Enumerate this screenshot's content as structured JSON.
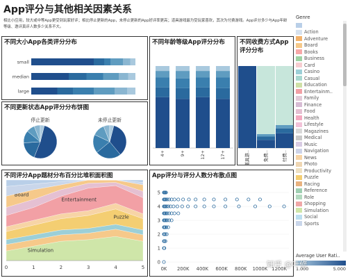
{
  "dashboard": {
    "title": "App评分与其他相关因素关系",
    "description": "相比小应用，较大或中等App更受到玩家好评；相比停止更新的App，未停止更新的App好评率更高；道具游戏最为受玩家喜欢，其次为付费游戏。App评分多少与App年龄等级、邀评真评人数多少关系不大。"
  },
  "colors": {
    "scale": [
      "#a9c9de",
      "#8ab6d1",
      "#5f9cc0",
      "#3a7fae",
      "#2a6a9e",
      "#1f4e8c"
    ],
    "mint": "#c7e6db",
    "mint_dark": "#aad8c8"
  },
  "legend": {
    "title": "Genre",
    "items": [
      {
        "label": "",
        "color": "#b9cfe8"
      },
      {
        "label": "Action",
        "color": "#d7e2ee"
      },
      {
        "label": "Adventure",
        "color": "#f2b26b"
      },
      {
        "label": "Board",
        "color": "#f6c98a"
      },
      {
        "label": "Books",
        "color": "#f7a8a8"
      },
      {
        "label": "Business",
        "color": "#9fd3a4"
      },
      {
        "label": "Card",
        "color": "#f6cdd0"
      },
      {
        "label": "Casino",
        "color": "#9ccfd7"
      },
      {
        "label": "Casual",
        "color": "#a8d8d0"
      },
      {
        "label": "Education",
        "color": "#cfe0a6"
      },
      {
        "label": "Entertainm..",
        "color": "#f2a0a5"
      },
      {
        "label": "Family",
        "color": "#e3cbd8"
      },
      {
        "label": "Finance",
        "color": "#d7bcd4"
      },
      {
        "label": "Food",
        "color": "#e5c0d2"
      },
      {
        "label": "Health",
        "color": "#f4a9c0"
      },
      {
        "label": "Lifestyle",
        "color": "#f2c2d8"
      },
      {
        "label": "Magazines",
        "color": "#d8d8d8"
      },
      {
        "label": "Medical",
        "color": "#c9c9c9"
      },
      {
        "label": "Music",
        "color": "#d8cbe3"
      },
      {
        "label": "Navigation",
        "color": "#cdd3e8"
      },
      {
        "label": "News",
        "color": "#f7d4a6"
      },
      {
        "label": "Photo",
        "color": "#efd6b2"
      },
      {
        "label": "Productivity",
        "color": "#eee0c2"
      },
      {
        "label": "Puzzle",
        "color": "#f4ce72"
      },
      {
        "label": "Racing",
        "color": "#e9b27f"
      },
      {
        "label": "Reference",
        "color": "#9fcfb2"
      },
      {
        "label": "Role",
        "color": "#b4dac0"
      },
      {
        "label": "Shopping",
        "color": "#f0a7a7"
      },
      {
        "label": "Simulation",
        "color": "#cfe6a9"
      },
      {
        "label": "Social",
        "color": "#bcdff0"
      },
      {
        "label": "Sports",
        "color": "#c9d6ea"
      }
    ]
  },
  "average_scale": {
    "title": "Average User Rati..",
    "min": "1.000",
    "max": "5.000"
  },
  "watermark": "知乎 @叶修",
  "chart_data": [
    {
      "id": "size",
      "type": "bar",
      "title": "不同大小App各类评分分布",
      "orientation": "horizontal",
      "categories": [
        "small",
        "median",
        "large"
      ],
      "series": [
        {
          "values": [
            0.6,
            0.36,
            0.25
          ]
        },
        {
          "values": [
            0.1,
            0.17,
            0.15
          ]
        },
        {
          "values": [
            0.06,
            0.16,
            0.2
          ]
        },
        {
          "values": [
            0.12,
            0.15,
            0.2
          ]
        },
        {
          "values": [
            0.07,
            0.09,
            0.12
          ]
        },
        {
          "values": [
            0.05,
            0.07,
            0.08
          ]
        }
      ]
    },
    {
      "id": "age",
      "type": "bar",
      "title": "不同年龄等级App评分分布",
      "categories": [
        "4+",
        "9+",
        "12+",
        "17+"
      ],
      "series": [
        {
          "values": [
            0.62,
            0.6,
            0.62,
            0.6
          ]
        },
        {
          "values": [
            0.12,
            0.13,
            0.12,
            0.13
          ]
        },
        {
          "values": [
            0.12,
            0.12,
            0.12,
            0.13
          ]
        },
        {
          "values": [
            0.08,
            0.09,
            0.08,
            0.08
          ]
        },
        {
          "values": [
            0.06,
            0.06,
            0.06,
            0.06
          ]
        }
      ]
    },
    {
      "id": "charge",
      "type": "bar",
      "title": "不同收费方式App评分分布",
      "categories": [
        "道具游..",
        "免费..",
        "付费.."
      ],
      "series": [
        {
          "values": [
            1.0,
            0.1,
            0.18
          ]
        },
        {
          "values": [
            0.0,
            0.04,
            0.06
          ]
        },
        {
          "values": [
            0.0,
            0.03,
            0.04
          ]
        },
        {
          "values": [
            0.0,
            0.83,
            0.72
          ]
        }
      ]
    },
    {
      "id": "update",
      "type": "pie",
      "title": "不同更新状态App评分分布饼图",
      "pies": [
        {
          "label": "停止更新",
          "values": [
            52,
            18,
            12,
            8,
            6,
            4
          ]
        },
        {
          "label": "未停止更新",
          "values": [
            35,
            25,
            18,
            12,
            6,
            4
          ]
        }
      ]
    },
    {
      "id": "genre",
      "type": "area",
      "title": "不同评分App题材分布百分比堆积面积图",
      "x": [
        0,
        1,
        2,
        3,
        4,
        5
      ],
      "xlim": [
        0,
        5
      ],
      "series": [
        {
          "name": "Simulation",
          "values": [
            12,
            18,
            24,
            26,
            30,
            24
          ]
        },
        {
          "name": "",
          "values": [
            8,
            8,
            8,
            8,
            9,
            8
          ]
        },
        {
          "name": "",
          "values": [
            6,
            6,
            6,
            6,
            6,
            6
          ]
        },
        {
          "name": "Puzzle",
          "values": [
            10,
            12,
            14,
            16,
            19,
            14
          ]
        },
        {
          "name": "",
          "values": [
            6,
            6,
            6,
            6,
            7,
            6
          ]
        },
        {
          "name": "Entertainment",
          "values": [
            14,
            16,
            22,
            28,
            22,
            20
          ]
        },
        {
          "name": "",
          "values": [
            10,
            10,
            8,
            6,
            4,
            8
          ]
        },
        {
          "name": "Board",
          "values": [
            14,
            12,
            6,
            4,
            3,
            8
          ]
        },
        {
          "name": "",
          "values": [
            12,
            7,
            4,
            0,
            0,
            3
          ]
        },
        {
          "name": "",
          "values": [
            8,
            5,
            2,
            0,
            0,
            3
          ]
        }
      ]
    },
    {
      "id": "scatter",
      "type": "scatter",
      "title": "App评分与评分人数分布散点图",
      "xlim": [
        0,
        1300000
      ],
      "ylim": [
        0,
        5.5
      ],
      "xticks": [
        "0K",
        "200K",
        "400K",
        "600K",
        "800K",
        "1000K",
        "1200K"
      ],
      "yticks": [
        "0",
        "1",
        "2",
        "3",
        "4",
        "5"
      ],
      "points": [
        [
          0,
          5
        ],
        [
          3000,
          5
        ],
        [
          8000,
          5
        ],
        [
          15000,
          5
        ],
        [
          22000,
          5
        ],
        [
          0,
          4.5
        ],
        [
          5000,
          4.5
        ],
        [
          12000,
          4.5
        ],
        [
          20000,
          4.5
        ],
        [
          35000,
          4.5
        ],
        [
          55000,
          4.5
        ],
        [
          80000,
          4.5
        ],
        [
          110000,
          4.5
        ],
        [
          150000,
          4.5
        ],
        [
          200000,
          4.5
        ],
        [
          260000,
          4.5
        ],
        [
          330000,
          4.5
        ],
        [
          420000,
          4.5
        ],
        [
          520000,
          4.5
        ],
        [
          640000,
          4.5
        ],
        [
          760000,
          4.5
        ],
        [
          880000,
          4.5
        ],
        [
          1000000,
          4.5
        ],
        [
          0,
          4
        ],
        [
          4000,
          4
        ],
        [
          10000,
          4
        ],
        [
          18000,
          4
        ],
        [
          30000,
          4
        ],
        [
          48000,
          4
        ],
        [
          70000,
          4
        ],
        [
          100000,
          4
        ],
        [
          140000,
          4
        ],
        [
          190000,
          4
        ],
        [
          250000,
          4
        ],
        [
          330000,
          4
        ],
        [
          420000,
          4
        ],
        [
          520000,
          4
        ],
        [
          640000,
          4
        ],
        [
          780000,
          4
        ],
        [
          950000,
          4
        ],
        [
          1100000,
          4
        ],
        [
          1250000,
          4
        ],
        [
          0,
          3.5
        ],
        [
          5000,
          3.5
        ],
        [
          12000,
          3.5
        ],
        [
          22000,
          3.5
        ],
        [
          35000,
          3.5
        ],
        [
          55000,
          3.5
        ],
        [
          80000,
          3.5
        ],
        [
          110000,
          3.5
        ],
        [
          150000,
          3.5
        ],
        [
          0,
          3
        ],
        [
          5000,
          3
        ],
        [
          12000,
          3
        ],
        [
          22000,
          3
        ],
        [
          35000,
          3
        ],
        [
          55000,
          3
        ],
        [
          80000,
          3
        ],
        [
          0,
          2.5
        ],
        [
          5000,
          2.5
        ],
        [
          12000,
          2.5
        ],
        [
          25000,
          2.5
        ],
        [
          45000,
          2.5
        ],
        [
          0,
          2
        ],
        [
          5000,
          2
        ],
        [
          15000,
          2
        ],
        [
          30000,
          2
        ],
        [
          0,
          1.5
        ],
        [
          6000,
          1.5
        ],
        [
          16000,
          1.5
        ],
        [
          0,
          1
        ],
        [
          5000,
          1
        ],
        [
          0,
          0
        ]
      ]
    }
  ]
}
